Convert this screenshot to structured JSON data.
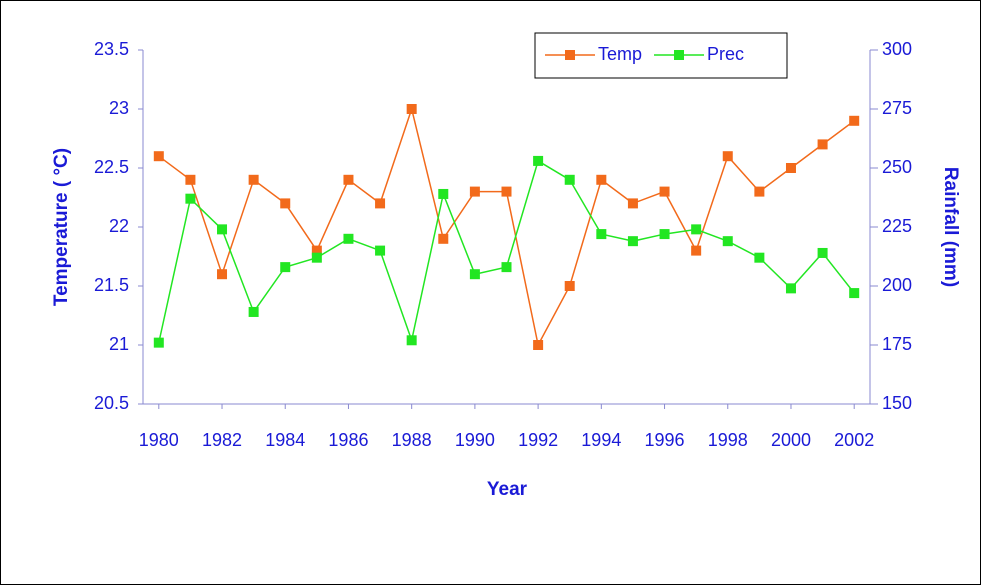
{
  "chart_data": {
    "type": "line",
    "x_label": "Year",
    "y_label": "Temperature ( °C)",
    "y2_label": "Rainfall (mm)",
    "x": [
      1980,
      1981,
      1982,
      1983,
      1984,
      1985,
      1986,
      1987,
      1988,
      1989,
      1990,
      1991,
      1992,
      1993,
      1994,
      1995,
      1996,
      1997,
      1998,
      1999,
      2000,
      2001,
      2002
    ],
    "xlim": [
      1979.5,
      2002.5
    ],
    "xticks": [
      1980,
      1982,
      1984,
      1986,
      1988,
      1990,
      1992,
      1994,
      1996,
      1998,
      2000,
      2002
    ],
    "ylim": [
      20.5,
      23.5
    ],
    "yticks": [
      20.5,
      21,
      21.5,
      22,
      22.5,
      23,
      23.5
    ],
    "y2lim": [
      150,
      300
    ],
    "y2ticks": [
      150,
      175,
      200,
      225,
      250,
      275,
      300
    ],
    "legend": "top-right",
    "series": [
      {
        "name": "Temp",
        "color": "#f26a1b",
        "values": [
          22.6,
          22.4,
          21.6,
          22.4,
          22.2,
          21.8,
          22.4,
          22.2,
          23.0,
          21.9,
          22.3,
          22.3,
          21.0,
          21.5,
          22.4,
          22.2,
          22.3,
          21.8,
          22.6,
          22.3,
          22.5,
          22.7,
          22.9
        ]
      },
      {
        "name": "Prec",
        "color": "#22e622",
        "axis": "y2",
        "values": [
          176,
          237,
          224,
          189,
          208,
          212,
          220,
          215,
          177,
          239,
          205,
          208,
          253,
          245,
          222,
          219,
          222,
          224,
          219,
          212,
          199,
          214,
          197
        ]
      }
    ]
  }
}
